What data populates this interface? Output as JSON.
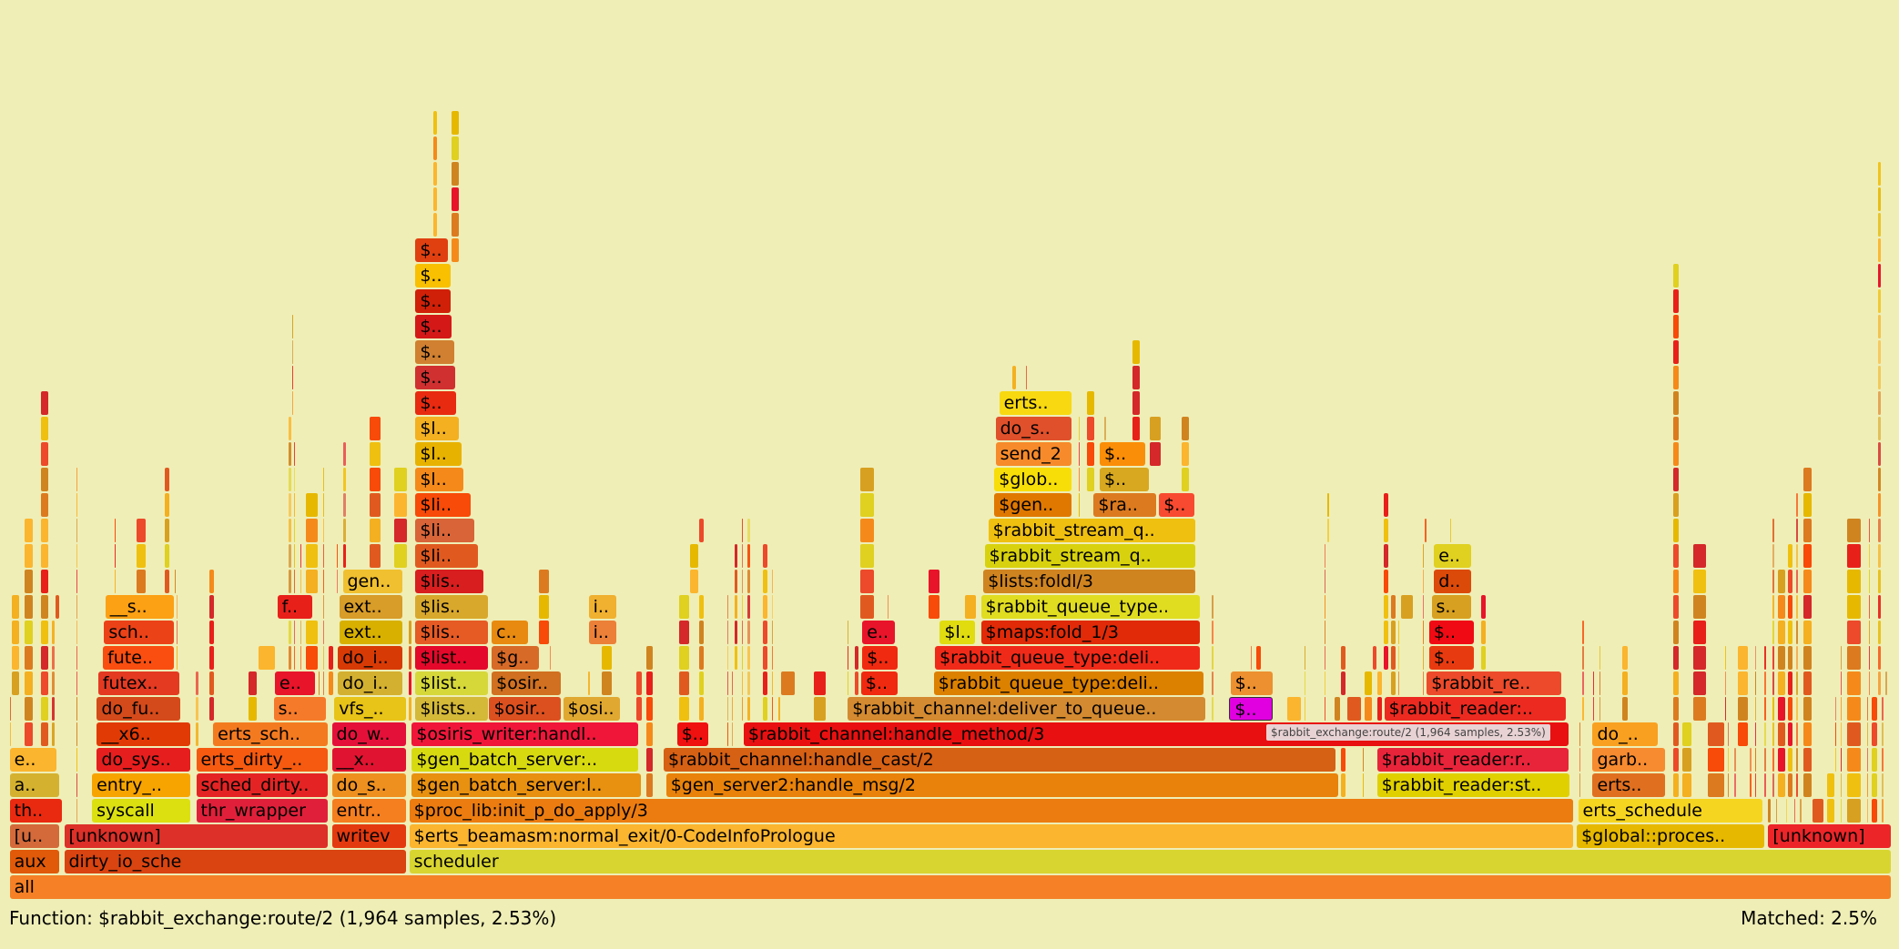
{
  "background_color": "#efeeb6",
  "highlight_color": "#e000e0",
  "tooltip": "$rabbit_exchange:route/2 (1,964 samples, 2.53%)",
  "footer": {
    "function_info": "Function: $rabbit_exchange:route/2 (1,964 samples, 2.53%)",
    "matched": "Matched: 2.5%"
  },
  "chart_data": {
    "type": "flamegraph",
    "selected_function": "$rabbit_exchange:route/2",
    "selected_samples": 1964,
    "selected_percent": 2.53,
    "matched_percent": 2.5,
    "frames": [
      {
        "label": "all",
        "depth": 0,
        "color": "#f58025"
      },
      {
        "label": "aux",
        "depth": 1,
        "color": "#e05a0a"
      },
      {
        "label": "dirty_io_sche",
        "depth": 1,
        "color": "#d94410"
      },
      {
        "label": "scheduler",
        "depth": 1,
        "color": "#d8d530"
      },
      {
        "label": "[u..",
        "depth": 2,
        "color": "#d46a3a"
      },
      {
        "label": "[unknown]",
        "depth": 2,
        "color": "#dc3028"
      },
      {
        "label": "writev",
        "depth": 2,
        "color": "#e43a10"
      },
      {
        "label": "$erts_beamasm:normal_exit/0-CodeInfoPrologue",
        "depth": 2,
        "color": "#fbb52e"
      },
      {
        "label": "$global::proces..",
        "depth": 2,
        "color": "#e6b800"
      },
      {
        "label": "[unknown]",
        "depth": 2,
        "color": "#ec2528"
      },
      {
        "label": "th..",
        "depth": 3,
        "color": "#ea2a10"
      },
      {
        "label": "syscall",
        "depth": 3,
        "color": "#dce010"
      },
      {
        "label": "thr_wrapper",
        "depth": 3,
        "color": "#e0203a"
      },
      {
        "label": "entr..",
        "depth": 3,
        "color": "#f57e1f"
      },
      {
        "label": "$proc_lib:init_p_do_apply/3",
        "depth": 3,
        "color": "#ec7c10"
      },
      {
        "label": "erts_schedule",
        "depth": 3,
        "color": "#f6d520"
      },
      {
        "label": "a..",
        "depth": 4,
        "color": "#d4b230"
      },
      {
        "label": "entry_..",
        "depth": 4,
        "color": "#f7a400"
      },
      {
        "label": "sched_dirty..",
        "depth": 4,
        "color": "#e42424"
      },
      {
        "label": "do_s..",
        "depth": 4,
        "color": "#ee9020"
      },
      {
        "label": "$gen_batch_server:l..",
        "depth": 4,
        "color": "#e89010"
      },
      {
        "label": "$gen_server2:handle_msg/2",
        "depth": 4,
        "color": "#e8820a"
      },
      {
        "label": "$rabbit_reader:st..",
        "depth": 4,
        "color": "#e0d000"
      },
      {
        "label": "erts..",
        "depth": 4,
        "color": "#e07020"
      },
      {
        "label": "e..",
        "depth": 5,
        "color": "#fbb52e"
      },
      {
        "label": "do_sys..",
        "depth": 5,
        "color": "#e61e1e"
      },
      {
        "label": "erts_dirty_..",
        "depth": 5,
        "color": "#f55a10"
      },
      {
        "label": "__x..",
        "depth": 5,
        "color": "#e01430"
      },
      {
        "label": "$gen_batch_server:..",
        "depth": 5,
        "color": "#d8da10"
      },
      {
        "label": "$rabbit_channel:handle_cast/2",
        "depth": 5,
        "color": "#d66014"
      },
      {
        "label": "$rabbit_reader:r..",
        "depth": 5,
        "color": "#e8243a"
      },
      {
        "label": "garb..",
        "depth": 5,
        "color": "#f78b30"
      },
      {
        "label": "__x6..",
        "depth": 6,
        "color": "#e23a05"
      },
      {
        "label": "erts_sch..",
        "depth": 6,
        "color": "#f47a20"
      },
      {
        "label": "do_w..",
        "depth": 6,
        "color": "#e5103a"
      },
      {
        "label": "$osiris_writer:handl..",
        "depth": 6,
        "color": "#f0163a"
      },
      {
        "label": "$..",
        "depth": 6,
        "color": "#ef1010"
      },
      {
        "label": "$rabbit_channel:handle_method/3",
        "depth": 6,
        "color": "#e81010"
      },
      {
        "label": "do_..",
        "depth": 6,
        "color": "#f9a020"
      },
      {
        "label": "do_fu..",
        "depth": 7,
        "color": "#d44a1a"
      },
      {
        "label": "s..",
        "depth": 7,
        "color": "#f57a2a"
      },
      {
        "label": "vfs_..",
        "depth": 7,
        "color": "#e8c318"
      },
      {
        "label": "$lists..",
        "depth": 7,
        "color": "#d4b838"
      },
      {
        "label": "$osir..",
        "depth": 7,
        "color": "#dc5020"
      },
      {
        "label": "$osi..",
        "depth": 7,
        "color": "#e0a830"
      },
      {
        "label": "$rabbit_channel:deliver_to_queue..",
        "depth": 7,
        "color": "#d48a30"
      },
      {
        "label": "$..",
        "depth": 7,
        "color": "#e000e0",
        "highlighted": true
      },
      {
        "label": "$rabbit_reader:..",
        "depth": 7,
        "color": "#ec2a20"
      },
      {
        "label": "futex..",
        "depth": 8,
        "color": "#e43a22"
      },
      {
        "label": "e..",
        "depth": 8,
        "color": "#e8142a"
      },
      {
        "label": "do_i..",
        "depth": 8,
        "color": "#d4b030"
      },
      {
        "label": "$list..",
        "depth": 8,
        "color": "#d6d83a"
      },
      {
        "label": "$osir..",
        "depth": 8,
        "color": "#d07020"
      },
      {
        "label": "$..",
        "depth": 8,
        "color": "#f02a10"
      },
      {
        "label": "$rabbit_queue_type:deli..",
        "depth": 8,
        "color": "#dc8000"
      },
      {
        "label": "$..",
        "depth": 8,
        "color": "#ec9030"
      },
      {
        "label": "$rabbit_re..",
        "depth": 8,
        "color": "#ec4a2a"
      },
      {
        "label": "fute..",
        "depth": 9,
        "color": "#f94e10"
      },
      {
        "label": "do_i..",
        "depth": 9,
        "color": "#d83a05"
      },
      {
        "label": "$list..",
        "depth": 9,
        "color": "#e4082a"
      },
      {
        "label": "$g..",
        "depth": 9,
        "color": "#d86a28"
      },
      {
        "label": "$..",
        "depth": 9,
        "color": "#f02a10"
      },
      {
        "label": "$rabbit_queue_type:deli..",
        "depth": 9,
        "color": "#f02a18"
      },
      {
        "label": "$..",
        "depth": 9,
        "color": "#e83a10"
      },
      {
        "label": "sch..",
        "depth": 10,
        "color": "#ec4218"
      },
      {
        "label": "ext..",
        "depth": 10,
        "color": "#d8b000"
      },
      {
        "label": "$lis..",
        "depth": 10,
        "color": "#e65a24"
      },
      {
        "label": "c..",
        "depth": 10,
        "color": "#e88a10"
      },
      {
        "label": "i..",
        "depth": 10,
        "color": "#ec8038"
      },
      {
        "label": "e..",
        "depth": 10,
        "color": "#e8142a"
      },
      {
        "label": "$l..",
        "depth": 10,
        "color": "#e0dc10"
      },
      {
        "label": "$maps:fold_1/3",
        "depth": 10,
        "color": "#e02a08"
      },
      {
        "label": "$..",
        "depth": 10,
        "color": "#f00a14"
      },
      {
        "label": "__s..",
        "depth": 11,
        "color": "#fca014"
      },
      {
        "label": "f..",
        "depth": 11,
        "color": "#e8201a"
      },
      {
        "label": "ext..",
        "depth": 11,
        "color": "#d89c28"
      },
      {
        "label": "$lis..",
        "depth": 11,
        "color": "#d8a82c"
      },
      {
        "label": "i..",
        "depth": 11,
        "color": "#f0b030"
      },
      {
        "label": "$rabbit_queue_type..",
        "depth": 11,
        "color": "#e0dc20"
      },
      {
        "label": "s..",
        "depth": 11,
        "color": "#d8a020"
      },
      {
        "label": "gen..",
        "depth": 12,
        "color": "#f0c030"
      },
      {
        "label": "$lis..",
        "depth": 12,
        "color": "#d81e1e"
      },
      {
        "label": "$lists:foldl/3",
        "depth": 12,
        "color": "#d08420"
      },
      {
        "label": "d..",
        "depth": 12,
        "color": "#dc4a0a"
      },
      {
        "label": "$li..",
        "depth": 13,
        "color": "#e05a20"
      },
      {
        "label": "$rabbit_stream_q..",
        "depth": 13,
        "color": "#d8d20e"
      },
      {
        "label": "e..",
        "depth": 13,
        "color": "#e0d020"
      },
      {
        "label": "$li..",
        "depth": 14,
        "color": "#d86438"
      },
      {
        "label": "$rabbit_stream_q..",
        "depth": 14,
        "color": "#f0c010"
      },
      {
        "label": "$li..",
        "depth": 15,
        "color": "#f84a08"
      },
      {
        "label": "$gen..",
        "depth": 15,
        "color": "#e07800"
      },
      {
        "label": "$ra..",
        "depth": 15,
        "color": "#dc7a20"
      },
      {
        "label": "$..",
        "depth": 15,
        "color": "#f84a30"
      },
      {
        "label": "$l..",
        "depth": 16,
        "color": "#f58a1a"
      },
      {
        "label": "$glob..",
        "depth": 16,
        "color": "#f8de08"
      },
      {
        "label": "$..",
        "depth": 16,
        "color": "#d8a820"
      },
      {
        "label": "$l..",
        "depth": 17,
        "color": "#e8b200"
      },
      {
        "label": "send_2",
        "depth": 17,
        "color": "#f78a2a"
      },
      {
        "label": "$..",
        "depth": 17,
        "color": "#fb8e08"
      },
      {
        "label": "$l..",
        "depth": 18,
        "color": "#f4b020"
      },
      {
        "label": "do_s..",
        "depth": 18,
        "color": "#e0502a"
      },
      {
        "label": "erts..",
        "depth": 19,
        "color": "#f8d810"
      },
      {
        "label": "$..",
        "depth": 19,
        "color": "#e82a10"
      },
      {
        "label": "$..",
        "depth": 20,
        "color": "#d03030"
      },
      {
        "label": "$..",
        "depth": 21,
        "color": "#d08030"
      },
      {
        "label": "$..",
        "depth": 22,
        "color": "#d41818"
      },
      {
        "label": "$..",
        "depth": 23,
        "color": "#d02008"
      },
      {
        "label": "$..",
        "depth": 24,
        "color": "#f8c000"
      },
      {
        "label": "$..",
        "depth": 25,
        "color": "#e04010"
      }
    ]
  }
}
